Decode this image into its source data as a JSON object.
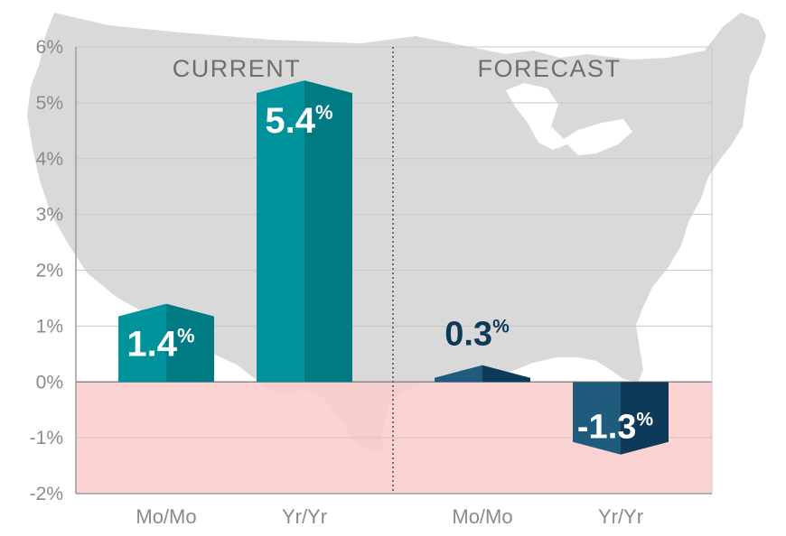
{
  "chart_data": {
    "type": "bar",
    "panels": [
      "CURRENT",
      "FORECAST"
    ],
    "categories": [
      "Mo/Mo",
      "Yr/Yr",
      "Mo/Mo",
      "Yr/Yr"
    ],
    "values": [
      1.4,
      5.4,
      0.3,
      -1.3
    ],
    "value_labels": [
      "1.4",
      "5.4",
      "0.3",
      "-1.3"
    ],
    "value_suffix": "%",
    "yticks": [
      "6%",
      "5%",
      "4%",
      "3%",
      "2%",
      "1%",
      "0%",
      "-1%",
      "-2%"
    ],
    "ylim": [
      -2,
      6
    ],
    "grid": true,
    "colors": {
      "current_front": "#00939c",
      "current_side": "#007a83",
      "forecast_front": "#1f5b7c",
      "forecast_side": "#0e3a59",
      "negative_band": "#fccbcb",
      "map": "#d9d9d9",
      "grid": "#c8c8c8",
      "axis": "#9a9a9a"
    }
  }
}
